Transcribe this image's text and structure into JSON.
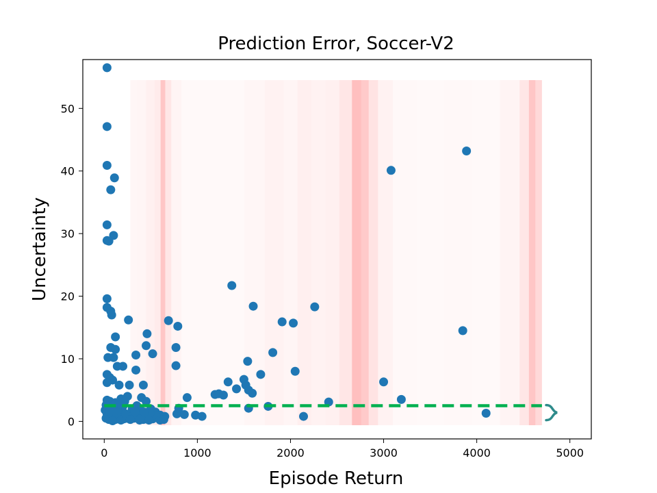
{
  "chart_data": {
    "type": "scatter",
    "title": "Prediction Error, Soccer-V2",
    "xlabel": "Episode Return",
    "ylabel": "Uncertainty",
    "xlim": [
      -230,
      5230
    ],
    "ylim": [
      -2.8,
      57.8
    ],
    "xticks": [
      0,
      1000,
      2000,
      3000,
      4000,
      5000
    ],
    "yticks": [
      0,
      10,
      20,
      30,
      40,
      50
    ],
    "grid": false,
    "point_color": "#1f77b4",
    "band_color": "#ff8080",
    "threshold_color": "#00b050",
    "bracket_color": "#2e8b8b",
    "threshold": {
      "y": 2.5,
      "x_start": 0,
      "x_end": 4700
    },
    "bracket": {
      "x": 4760,
      "y_low": 0.2,
      "y_high": 2.6
    },
    "shading": {
      "x_start": 280,
      "x_end": 4700,
      "bands": [
        {
          "x": 300,
          "intensity": 0.07
        },
        {
          "x": 400,
          "intensity": 0.08
        },
        {
          "x": 500,
          "intensity": 0.12
        },
        {
          "x": 580,
          "intensity": 0.16
        },
        {
          "x": 630,
          "intensity": 0.45
        },
        {
          "x": 680,
          "intensity": 0.2
        },
        {
          "x": 760,
          "intensity": 0.09
        },
        {
          "x": 900,
          "intensity": 0.05
        },
        {
          "x": 1400,
          "intensity": 0.05
        },
        {
          "x": 1600,
          "intensity": 0.07
        },
        {
          "x": 1850,
          "intensity": 0.1
        },
        {
          "x": 2000,
          "intensity": 0.08
        },
        {
          "x": 2150,
          "intensity": 0.13
        },
        {
          "x": 2300,
          "intensity": 0.1
        },
        {
          "x": 2450,
          "intensity": 0.12
        },
        {
          "x": 2600,
          "intensity": 0.2
        },
        {
          "x": 2720,
          "intensity": 0.5
        },
        {
          "x": 2800,
          "intensity": 0.42
        },
        {
          "x": 2880,
          "intensity": 0.22
        },
        {
          "x": 3000,
          "intensity": 0.1
        },
        {
          "x": 3200,
          "intensity": 0.06
        },
        {
          "x": 3500,
          "intensity": 0.05
        },
        {
          "x": 3800,
          "intensity": 0.06
        },
        {
          "x": 4100,
          "intensity": 0.05
        },
        {
          "x": 4400,
          "intensity": 0.09
        },
        {
          "x": 4520,
          "intensity": 0.2
        },
        {
          "x": 4600,
          "intensity": 0.45
        },
        {
          "x": 4660,
          "intensity": 0.3
        }
      ]
    },
    "points": [
      [
        30,
        56.5
      ],
      [
        30,
        47.1
      ],
      [
        30,
        40.9
      ],
      [
        110,
        38.9
      ],
      [
        70,
        37
      ],
      [
        30,
        31.4
      ],
      [
        100,
        29.7
      ],
      [
        30,
        28.9
      ],
      [
        50,
        28.8
      ],
      [
        30,
        19.6
      ],
      [
        30,
        18.2
      ],
      [
        70,
        17.6
      ],
      [
        80,
        17
      ],
      [
        260,
        16.2
      ],
      [
        40,
        10.2
      ],
      [
        70,
        11.8
      ],
      [
        120,
        11.5
      ],
      [
        120,
        13.5
      ],
      [
        100,
        10.2
      ],
      [
        140,
        8.8
      ],
      [
        30,
        7.5
      ],
      [
        60,
        7
      ],
      [
        90,
        6.6
      ],
      [
        200,
        8.8
      ],
      [
        340,
        10.6
      ],
      [
        450,
        12.1
      ],
      [
        460,
        14
      ],
      [
        520,
        10.8
      ],
      [
        340,
        8.2
      ],
      [
        420,
        5.8
      ],
      [
        160,
        5.8
      ],
      [
        270,
        5.8
      ],
      [
        30,
        6.2
      ],
      [
        400,
        3.8
      ],
      [
        450,
        3.2
      ],
      [
        250,
        4
      ],
      [
        180,
        3.6
      ],
      [
        120,
        3
      ],
      [
        60,
        3.2
      ],
      [
        30,
        3.4
      ],
      [
        200,
        2.4
      ],
      [
        300,
        2
      ],
      [
        350,
        2.5
      ],
      [
        500,
        2
      ],
      [
        550,
        1.5
      ],
      [
        600,
        1
      ],
      [
        650,
        0.8
      ],
      [
        100,
        2
      ],
      [
        150,
        1.5
      ],
      [
        20,
        0.5
      ],
      [
        30,
        1.2
      ],
      [
        50,
        0.3
      ],
      [
        80,
        0.8
      ],
      [
        120,
        0.3
      ],
      [
        160,
        1
      ],
      [
        210,
        0.4
      ],
      [
        260,
        0.9
      ],
      [
        320,
        0.5
      ],
      [
        370,
        1.2
      ],
      [
        420,
        0.3
      ],
      [
        470,
        1
      ],
      [
        520,
        0.4
      ],
      [
        560,
        0.9
      ],
      [
        600,
        0.2
      ],
      [
        640,
        0.3
      ],
      [
        10,
        1.8
      ],
      [
        70,
        2.4
      ],
      [
        130,
        0.7
      ],
      [
        190,
        2
      ],
      [
        240,
        0.5
      ],
      [
        290,
        1.4
      ],
      [
        340,
        0.6
      ],
      [
        390,
        1.8
      ],
      [
        440,
        0.5
      ],
      [
        490,
        1.3
      ],
      [
        40,
        0.9
      ],
      [
        90,
        0.1
      ],
      [
        140,
        1.8
      ],
      [
        180,
        0.2
      ],
      [
        230,
        1.2
      ],
      [
        280,
        0.3
      ],
      [
        330,
        1.6
      ],
      [
        380,
        0.2
      ],
      [
        430,
        1.5
      ],
      [
        480,
        0.2
      ],
      [
        20,
        2.6
      ],
      [
        60,
        1.6
      ],
      [
        110,
        2.7
      ],
      [
        170,
        2.8
      ],
      [
        220,
        3.2
      ],
      [
        690,
        16.1
      ],
      [
        790,
        15.2
      ],
      [
        770,
        11.8
      ],
      [
        770,
        8.9
      ],
      [
        890,
        3.8
      ],
      [
        780,
        1.2
      ],
      [
        800,
        2.1
      ],
      [
        860,
        1.1
      ],
      [
        980,
        1
      ],
      [
        1050,
        0.8
      ],
      [
        1190,
        4.3
      ],
      [
        1230,
        4.4
      ],
      [
        1280,
        4.2
      ],
      [
        1330,
        6.3
      ],
      [
        1370,
        21.7
      ],
      [
        1420,
        5.2
      ],
      [
        1500,
        6.7
      ],
      [
        1520,
        5.8
      ],
      [
        1540,
        9.6
      ],
      [
        1550,
        2.1
      ],
      [
        1550,
        5
      ],
      [
        1590,
        4.5
      ],
      [
        1600,
        18.4
      ],
      [
        1680,
        7.5
      ],
      [
        1760,
        2.4
      ],
      [
        1810,
        11
      ],
      [
        1910,
        15.9
      ],
      [
        2030,
        15.7
      ],
      [
        2050,
        8
      ],
      [
        2140,
        0.8
      ],
      [
        2260,
        18.3
      ],
      [
        2410,
        3.1
      ],
      [
        3000,
        6.3
      ],
      [
        3080,
        40.1
      ],
      [
        3190,
        3.5
      ],
      [
        3850,
        14.5
      ],
      [
        3890,
        43.2
      ],
      [
        4100,
        1.3
      ]
    ]
  }
}
